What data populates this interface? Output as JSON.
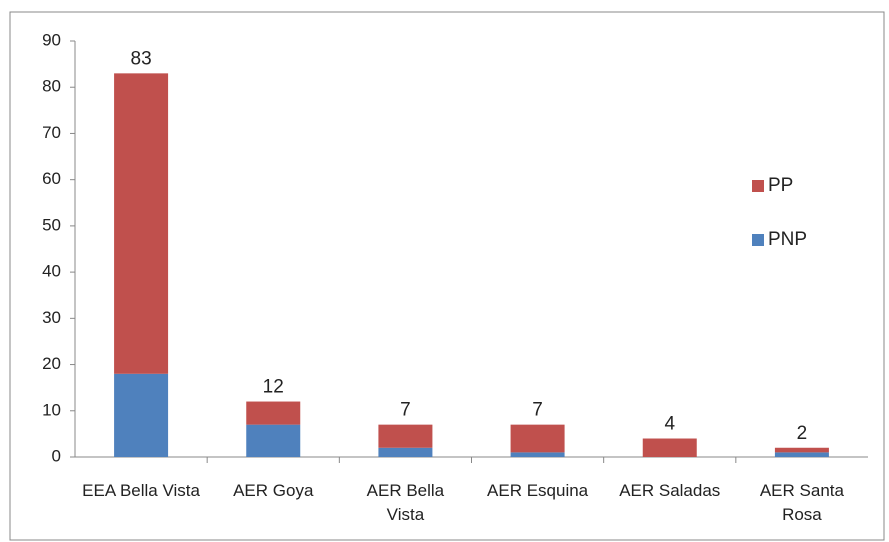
{
  "chart_data": {
    "type": "stacked_bar",
    "categories": [
      "EEA Bella Vista",
      "AER Goya",
      "AER Bella Vista",
      "AER Esquina",
      "AER Saladas",
      "AER Santa Rosa"
    ],
    "series": [
      {
        "name": "PNP",
        "color": "#4f81bd",
        "values": [
          18,
          7,
          2,
          1,
          0,
          1
        ]
      },
      {
        "name": "PP",
        "color": "#c0504d",
        "values": [
          65,
          5,
          5,
          6,
          4,
          1
        ]
      }
    ],
    "totals": [
      83,
      12,
      7,
      7,
      4,
      2
    ],
    "ylim": [
      0,
      90
    ],
    "yticks": [
      0,
      10,
      20,
      30,
      40,
      50,
      60,
      70,
      80,
      90
    ],
    "legend": "right"
  }
}
